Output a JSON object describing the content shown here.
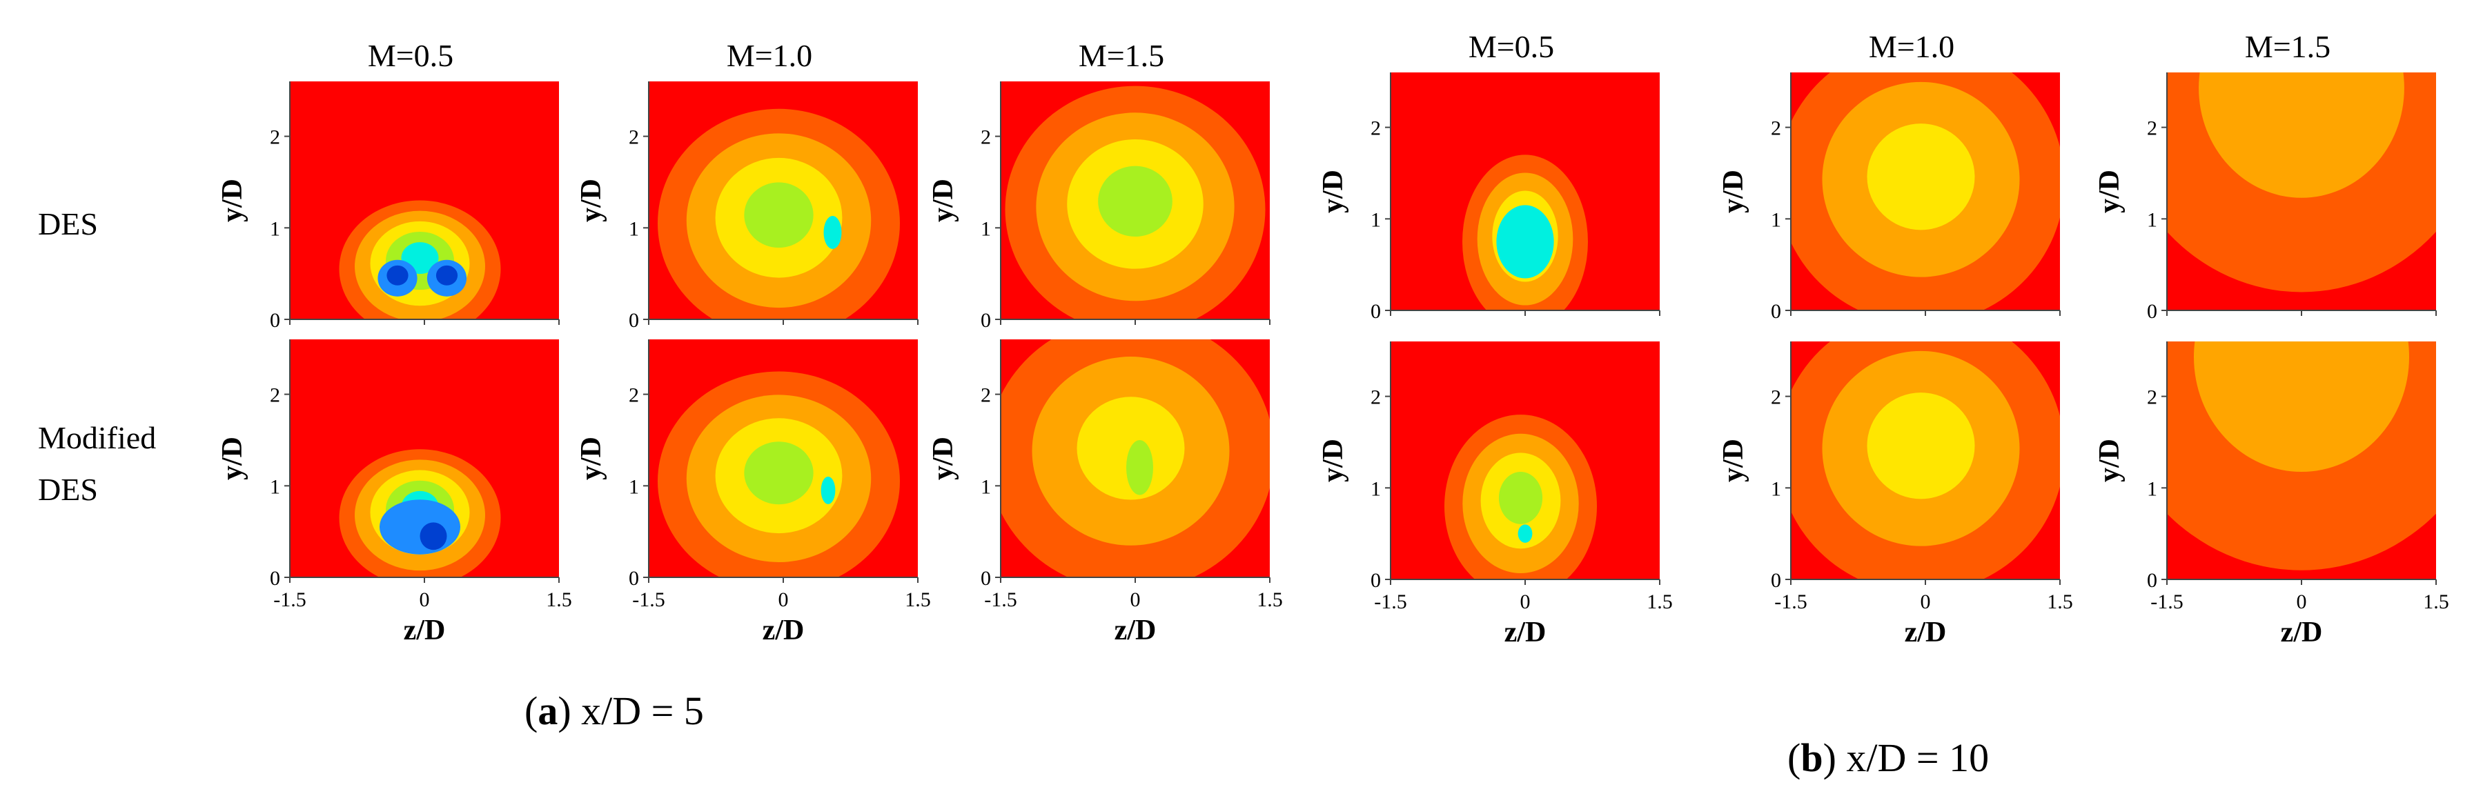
{
  "figure": {
    "row_labels": [
      "DES",
      "Modified DES"
    ],
    "col_titles": [
      "M=0.5",
      "M=1.0",
      "M=1.5"
    ],
    "xlabel": "z/D",
    "ylabel": "y/D",
    "x_ticks": [
      "-1.5",
      "0",
      "1.5"
    ],
    "y_ticks": [
      "0",
      "1",
      "2"
    ],
    "captions": [
      {
        "letter": "a",
        "text": " x/D = 5",
        "paren_open": "(",
        "paren_close": ")"
      },
      {
        "letter": "b",
        "text": " x/D = 10",
        "paren_open": "(",
        "paren_close": ")"
      }
    ]
  },
  "colors": {
    "levels": [
      "#ff0000",
      "#ff5a00",
      "#ffa500",
      "#ffe600",
      "#a8f020",
      "#00f0e0",
      "#1e8cff",
      "#0040d0"
    ]
  },
  "chart_data": {
    "type": "heatmap",
    "description_units": "contour levels, 0 = outermost (red background) to 7 = innermost (dark blue)",
    "xlim": [
      -1.5,
      1.5
    ],
    "ylim": [
      0,
      2.6
    ],
    "panels": [
      {
        "group": "a",
        "x_over_D": 5,
        "model": "DES",
        "M": 0.5,
        "title": "M=0.5",
        "blobs": [
          {
            "cx": -0.05,
            "cy": 0.55,
            "rx": 0.9,
            "ry": 0.75,
            "levels": [
              1,
              2,
              3,
              4,
              5
            ]
          },
          {
            "cx": -0.3,
            "cy": 0.45,
            "rx": 0.22,
            "ry": 0.2,
            "levels": [
              6,
              7
            ]
          },
          {
            "cx": 0.25,
            "cy": 0.45,
            "rx": 0.22,
            "ry": 0.2,
            "levels": [
              6,
              7
            ]
          }
        ]
      },
      {
        "group": "a",
        "x_over_D": 5,
        "model": "DES",
        "M": 1.0,
        "title": "M=1.0",
        "blobs": [
          {
            "cx": -0.05,
            "cy": 1.05,
            "rx": 1.35,
            "ry": 1.25,
            "levels": [
              1,
              2,
              3,
              4
            ]
          },
          {
            "cx": 0.55,
            "cy": 0.95,
            "rx": 0.1,
            "ry": 0.18,
            "levels": [
              5
            ]
          }
        ]
      },
      {
        "group": "a",
        "x_over_D": 5,
        "model": "DES",
        "M": 1.5,
        "title": "M=1.5",
        "blobs": [
          {
            "cx": 0.0,
            "cy": 1.2,
            "rx": 1.45,
            "ry": 1.35,
            "levels": [
              1,
              2,
              3,
              4
            ]
          }
        ]
      },
      {
        "group": "a",
        "x_over_D": 5,
        "model": "Modified DES",
        "M": 0.5,
        "title": "M=0.5",
        "blobs": [
          {
            "cx": -0.05,
            "cy": 0.65,
            "rx": 0.9,
            "ry": 0.75,
            "levels": [
              1,
              2,
              3,
              4,
              5
            ]
          },
          {
            "cx": -0.05,
            "cy": 0.55,
            "rx": 0.45,
            "ry": 0.3,
            "levels": [
              6
            ]
          },
          {
            "cx": 0.1,
            "cy": 0.45,
            "rx": 0.15,
            "ry": 0.15,
            "levels": [
              7
            ]
          }
        ]
      },
      {
        "group": "a",
        "x_over_D": 5,
        "model": "Modified DES",
        "M": 1.0,
        "title": "M=1.0",
        "blobs": [
          {
            "cx": -0.05,
            "cy": 1.05,
            "rx": 1.35,
            "ry": 1.2,
            "levels": [
              1,
              2,
              3,
              4
            ]
          },
          {
            "cx": 0.5,
            "cy": 0.95,
            "rx": 0.08,
            "ry": 0.15,
            "levels": [
              5
            ]
          }
        ]
      },
      {
        "group": "a",
        "x_over_D": 5,
        "model": "Modified DES",
        "M": 1.5,
        "title": "M=1.5",
        "blobs": [
          {
            "cx": -0.05,
            "cy": 1.35,
            "rx": 1.6,
            "ry": 1.5,
            "levels": [
              1,
              2,
              3
            ]
          },
          {
            "cx": 0.05,
            "cy": 1.2,
            "rx": 0.15,
            "ry": 0.3,
            "levels": [
              4
            ]
          }
        ]
      },
      {
        "group": "b",
        "x_over_D": 10,
        "model": "DES",
        "M": 0.5,
        "title": "M=0.5",
        "blobs": [
          {
            "cx": 0.0,
            "cy": 0.75,
            "rx": 0.7,
            "ry": 0.95,
            "levels": [
              1,
              2,
              3,
              4
            ]
          },
          {
            "cx": 0.0,
            "cy": 0.75,
            "rx": 0.32,
            "ry": 0.4,
            "levels": [
              5
            ]
          }
        ]
      },
      {
        "group": "b",
        "x_over_D": 10,
        "model": "DES",
        "M": 1.0,
        "title": "M=1.0",
        "blobs": [
          {
            "cx": -0.05,
            "cy": 1.4,
            "rx": 1.6,
            "ry": 1.55,
            "levels": [
              1,
              2,
              3
            ]
          }
        ]
      },
      {
        "group": "b",
        "x_over_D": 10,
        "model": "DES",
        "M": 1.5,
        "title": "M=1.5",
        "blobs": [
          {
            "cx": 0.0,
            "cy": 2.4,
            "rx": 2.1,
            "ry": 2.2,
            "levels": [
              1,
              2
            ]
          }
        ]
      },
      {
        "group": "b",
        "x_over_D": 10,
        "model": "Modified DES",
        "M": 0.5,
        "title": "M=0.5",
        "blobs": [
          {
            "cx": -0.05,
            "cy": 0.8,
            "rx": 0.85,
            "ry": 1.0,
            "levels": [
              1,
              2,
              3,
              4
            ]
          },
          {
            "cx": 0.0,
            "cy": 0.5,
            "rx": 0.08,
            "ry": 0.1,
            "levels": [
              5
            ]
          }
        ]
      },
      {
        "group": "b",
        "x_over_D": 10,
        "model": "Modified DES",
        "M": 1.0,
        "title": "M=1.0",
        "blobs": [
          {
            "cx": -0.05,
            "cy": 1.4,
            "rx": 1.6,
            "ry": 1.55,
            "levels": [
              1,
              2,
              3
            ]
          }
        ]
      },
      {
        "group": "b",
        "x_over_D": 10,
        "model": "Modified DES",
        "M": 1.5,
        "title": "M=1.5",
        "blobs": [
          {
            "cx": 0.0,
            "cy": 2.4,
            "rx": 2.2,
            "ry": 2.3,
            "levels": [
              1,
              2
            ]
          }
        ]
      }
    ]
  }
}
